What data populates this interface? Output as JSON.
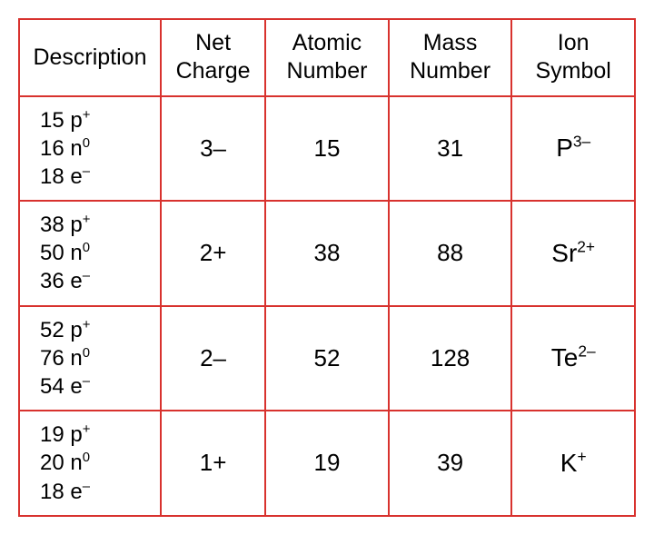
{
  "border_color": "#d8322e",
  "text_color": "#000000",
  "background_color": "#ffffff",
  "font_family": "Arial",
  "header_fontsize": 25,
  "body_fontsize": 26,
  "columns": [
    {
      "label": "Description",
      "key": "description",
      "width_pct": 23
    },
    {
      "label": "Net\nCharge",
      "key": "net_charge",
      "width_pct": 17
    },
    {
      "label": "Atomic\nNumber",
      "key": "atomic_no",
      "width_pct": 20
    },
    {
      "label": "Mass\nNumber",
      "key": "mass_no",
      "width_pct": 20
    },
    {
      "label": "Ion\nSymbol",
      "key": "ion_symbol",
      "width_pct": 20
    }
  ],
  "rows": [
    {
      "description": {
        "p": "15",
        "n": "16",
        "e": "18"
      },
      "net_charge": "3–",
      "atomic_no": "15",
      "mass_no": "31",
      "ion_symbol": {
        "element": "P",
        "charge": "3–"
      }
    },
    {
      "description": {
        "p": "38",
        "n": "50",
        "e": "36"
      },
      "net_charge": "2+",
      "atomic_no": "38",
      "mass_no": "88",
      "ion_symbol": {
        "element": "Sr",
        "charge": "2+"
      }
    },
    {
      "description": {
        "p": "52",
        "n": "76",
        "e": "54"
      },
      "net_charge": "2–",
      "atomic_no": "52",
      "mass_no": "128",
      "ion_symbol": {
        "element": "Te",
        "charge": "2–"
      }
    },
    {
      "description": {
        "p": "19",
        "n": "20",
        "e": "18"
      },
      "net_charge": "1+",
      "atomic_no": "19",
      "mass_no": "39",
      "ion_symbol": {
        "element": "K",
        "charge": "+"
      }
    }
  ],
  "superscripts": {
    "proton": "+",
    "neutron": "0",
    "electron": "–"
  }
}
